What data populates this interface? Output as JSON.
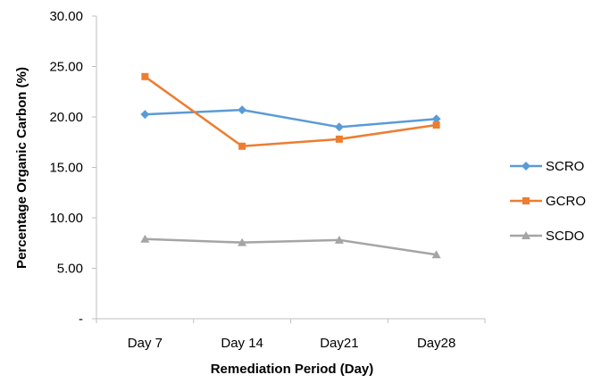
{
  "chart_data": {
    "type": "line",
    "categories": [
      "Day 7",
      "Day 14",
      "Day21",
      "Day28"
    ],
    "series": [
      {
        "name": "SCRO",
        "values": [
          20.25,
          20.7,
          19.0,
          19.8
        ],
        "color": "#5B9BD5",
        "marker": "diamond"
      },
      {
        "name": "GCRO",
        "values": [
          24.0,
          17.1,
          17.8,
          19.2
        ],
        "color": "#ED7D31",
        "marker": "square"
      },
      {
        "name": "SCDO",
        "values": [
          7.9,
          7.55,
          7.8,
          6.35
        ],
        "color": "#A5A5A5",
        "marker": "triangle"
      }
    ],
    "xlabel": "Remediation Period (Day)",
    "ylabel": "Percentage Organic Carbon (%)",
    "ylim": [
      0,
      30
    ],
    "yticks": [
      0,
      5,
      10,
      15,
      20,
      25,
      30
    ],
    "ytick_labels": [
      "-",
      "5.00",
      "10.00",
      "15.00",
      "20.00",
      "25.00",
      "30.00"
    ],
    "grid": false,
    "legend_position": "right"
  }
}
